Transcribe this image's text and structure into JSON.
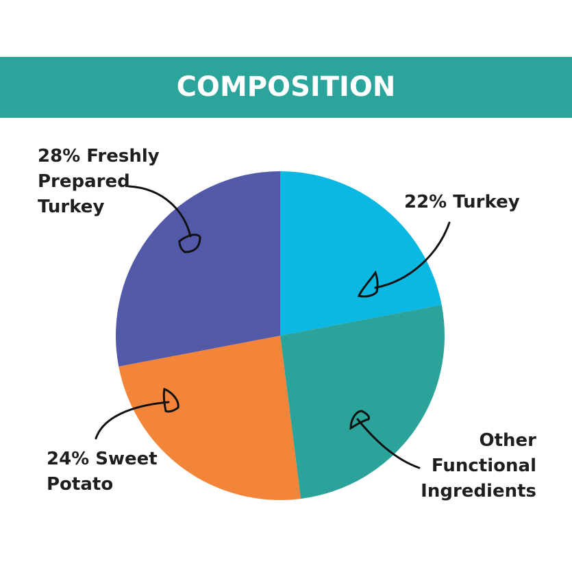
{
  "chart_data": {
    "type": "pie",
    "title": "COMPOSITION",
    "categories": [
      "22% Turkey",
      "Other\nFunctional\nIngredients",
      "24% Sweet\nPotato",
      "28% Freshly\nPrepared\nTurkey"
    ],
    "values": [
      22,
      26,
      24,
      28
    ],
    "colors": [
      "#0bb8e2",
      "#2ba39a",
      "#f2853a",
      "#5259a9"
    ],
    "header_color": "#2ba59b"
  }
}
